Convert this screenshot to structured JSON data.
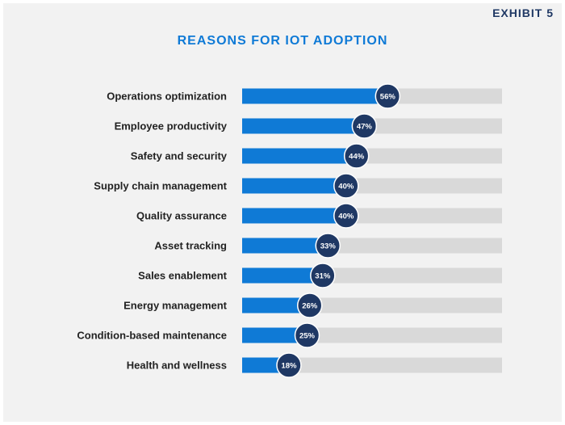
{
  "exhibit_label": "EXHIBIT 5",
  "chart_data": {
    "type": "bar",
    "orientation": "horizontal",
    "title": "REASONS FOR IOT ADOPTION",
    "categories": [
      "Operations optimization",
      "Employee productivity",
      "Safety and security",
      "Supply chain management",
      "Quality assurance",
      "Asset tracking",
      "Sales enablement",
      "Energy management",
      "Condition-based maintenance",
      "Health and wellness"
    ],
    "values": [
      56,
      47,
      44,
      40,
      40,
      33,
      31,
      26,
      25,
      18
    ],
    "value_labels": [
      "56%",
      "47%",
      "44%",
      "40%",
      "40%",
      "33%",
      "31%",
      "26%",
      "25%",
      "18%"
    ],
    "xlim": [
      0,
      100
    ],
    "grid": false,
    "colors": {
      "bar": "#0f7ad6",
      "track": "#d9d9d9",
      "marker": "#1f3864",
      "title": "#0f7ad6",
      "exhibit": "#1f3864"
    }
  }
}
